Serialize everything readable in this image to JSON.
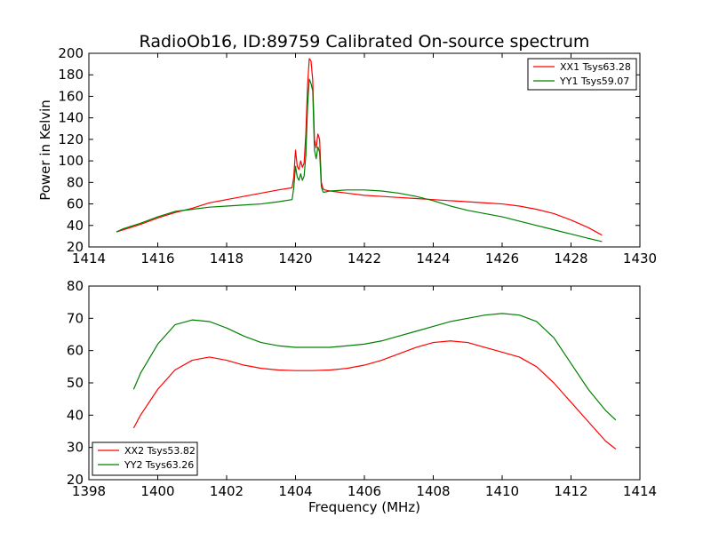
{
  "figure": {
    "title": "RadioOb16, ID:89759 Calibrated On-source spectrum",
    "ylabel": "Power in Kelvin",
    "xlabel": "Frequency (MHz)"
  },
  "chart_data": [
    {
      "type": "line",
      "title": "RadioOb16, ID:89759 Calibrated On-source spectrum",
      "xlabel": "",
      "ylabel": "Power in Kelvin",
      "xlim": [
        1414,
        1430
      ],
      "ylim": [
        20,
        200
      ],
      "xticks": [
        1414,
        1416,
        1418,
        1420,
        1422,
        1424,
        1426,
        1428,
        1430
      ],
      "yticks": [
        20,
        40,
        60,
        80,
        100,
        120,
        140,
        160,
        180,
        200
      ],
      "grid": false,
      "legend_position": "top-right",
      "series": [
        {
          "name": "XX1 Tsys63.28",
          "color": "#ff0000",
          "x": [
            1414.8,
            1415.0,
            1415.5,
            1416.0,
            1416.5,
            1417.0,
            1417.5,
            1418.0,
            1418.5,
            1419.0,
            1419.5,
            1419.9,
            1419.95,
            1420.0,
            1420.05,
            1420.1,
            1420.15,
            1420.2,
            1420.25,
            1420.3,
            1420.35,
            1420.4,
            1420.45,
            1420.5,
            1420.55,
            1420.6,
            1420.65,
            1420.7,
            1420.75,
            1420.8,
            1420.85,
            1421.0,
            1421.5,
            1422.0,
            1422.5,
            1423.0,
            1423.5,
            1424.0,
            1424.5,
            1425.0,
            1425.5,
            1426.0,
            1426.5,
            1427.0,
            1427.5,
            1428.0,
            1428.5,
            1428.9
          ],
          "y": [
            34,
            36,
            41,
            47,
            52,
            56,
            61,
            64,
            67,
            70,
            73,
            75,
            85,
            110,
            95,
            92,
            100,
            94,
            98,
            125,
            170,
            195,
            193,
            175,
            120,
            112,
            125,
            120,
            80,
            74,
            73,
            72,
            70,
            68,
            67,
            66,
            65,
            64,
            63,
            62,
            61,
            60,
            58,
            55,
            51,
            45,
            38,
            31
          ]
        },
        {
          "name": "YY1 Tsys59.07",
          "color": "#008000",
          "x": [
            1414.8,
            1415.0,
            1415.5,
            1416.0,
            1416.5,
            1417.0,
            1417.5,
            1418.0,
            1418.5,
            1419.0,
            1419.5,
            1419.9,
            1419.95,
            1420.0,
            1420.05,
            1420.1,
            1420.15,
            1420.2,
            1420.25,
            1420.3,
            1420.35,
            1420.4,
            1420.45,
            1420.5,
            1420.55,
            1420.6,
            1420.65,
            1420.7,
            1420.75,
            1420.8,
            1420.85,
            1421.0,
            1421.5,
            1422.0,
            1422.5,
            1423.0,
            1423.5,
            1424.0,
            1424.5,
            1425.0,
            1425.5,
            1426.0,
            1426.5,
            1427.0,
            1427.5,
            1428.0,
            1428.5,
            1428.9
          ],
          "y": [
            34,
            37,
            42,
            48,
            53,
            55,
            57,
            58,
            59,
            60,
            62,
            64,
            75,
            95,
            85,
            82,
            88,
            82,
            86,
            105,
            150,
            176,
            172,
            165,
            110,
            102,
            113,
            108,
            76,
            71,
            71,
            72,
            73,
            73,
            72,
            70,
            67,
            63,
            58,
            54,
            51,
            48,
            44,
            40,
            36,
            32,
            28,
            25
          ]
        }
      ]
    },
    {
      "type": "line",
      "title": "",
      "xlabel": "Frequency (MHz)",
      "ylabel": "",
      "xlim": [
        1398,
        1414
      ],
      "ylim": [
        20,
        80
      ],
      "xticks": [
        1398,
        1400,
        1402,
        1404,
        1406,
        1408,
        1410,
        1412,
        1414
      ],
      "yticks": [
        20,
        30,
        40,
        50,
        60,
        70,
        80
      ],
      "grid": false,
      "legend_position": "bottom-left",
      "series": [
        {
          "name": "XX2 Tsys53.82",
          "color": "#ff0000",
          "x": [
            1399.3,
            1399.5,
            1400.0,
            1400.5,
            1401.0,
            1401.5,
            1402.0,
            1402.5,
            1403.0,
            1403.5,
            1404.0,
            1404.5,
            1405.0,
            1405.5,
            1406.0,
            1406.5,
            1407.0,
            1407.5,
            1408.0,
            1408.5,
            1409.0,
            1409.5,
            1410.0,
            1410.5,
            1411.0,
            1411.5,
            1412.0,
            1412.5,
            1413.0,
            1413.3
          ],
          "y": [
            36,
            40,
            48,
            54,
            57,
            58,
            57,
            55.5,
            54.5,
            54,
            53.8,
            53.8,
            54,
            54.5,
            55.5,
            57,
            59,
            61,
            62.5,
            63,
            62.5,
            61,
            59.5,
            58,
            55,
            50,
            44,
            38,
            32,
            29.5
          ]
        },
        {
          "name": "YY2 Tsys63.26",
          "color": "#008000",
          "x": [
            1399.3,
            1399.5,
            1400.0,
            1400.5,
            1401.0,
            1401.5,
            1402.0,
            1402.5,
            1403.0,
            1403.5,
            1404.0,
            1404.5,
            1405.0,
            1405.5,
            1406.0,
            1406.5,
            1407.0,
            1407.5,
            1408.0,
            1408.5,
            1409.0,
            1409.5,
            1410.0,
            1410.5,
            1411.0,
            1411.5,
            1412.0,
            1412.5,
            1413.0,
            1413.3
          ],
          "y": [
            48,
            53,
            62,
            68,
            69.5,
            69,
            67,
            64.5,
            62.5,
            61.5,
            61,
            61,
            61,
            61.5,
            62,
            63,
            64.5,
            66,
            67.5,
            69,
            70,
            71,
            71.5,
            71,
            69,
            64,
            56,
            48,
            41.5,
            38.5
          ]
        }
      ]
    }
  ]
}
